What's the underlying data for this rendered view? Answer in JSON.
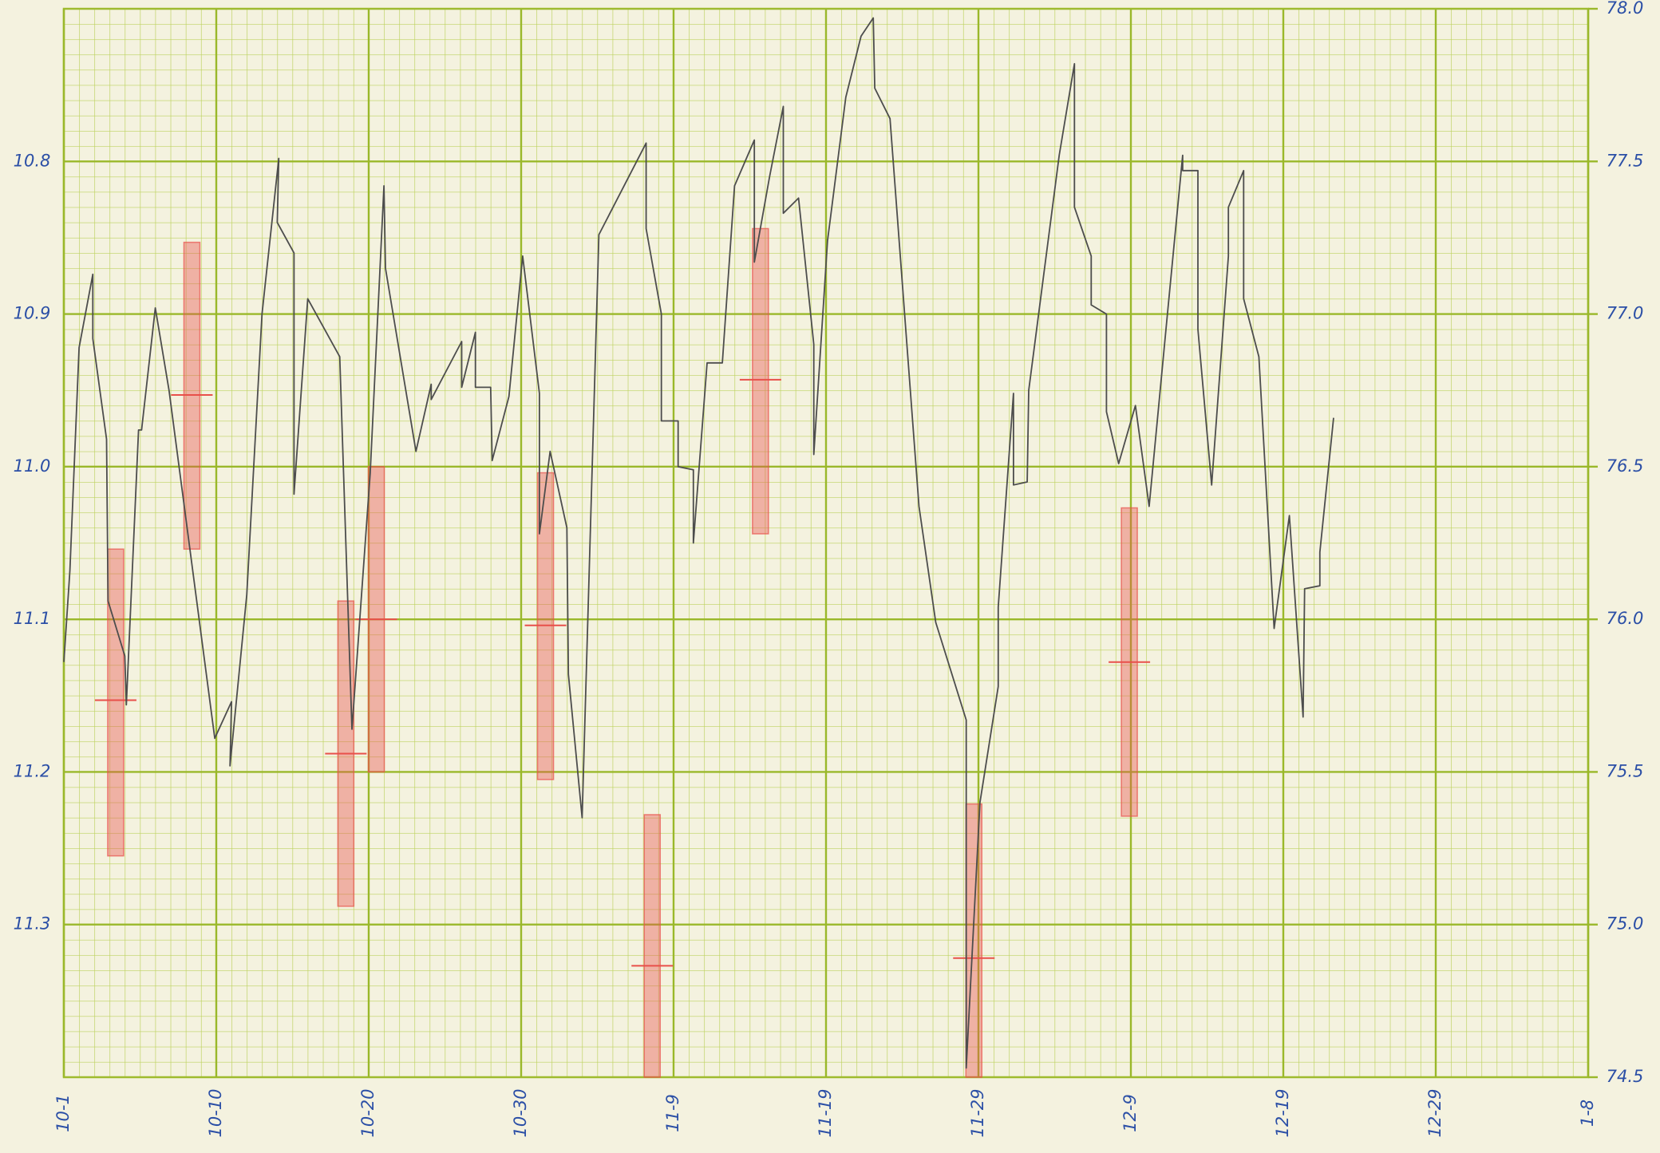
{
  "chart_data": {
    "type": "line",
    "x": [
      0.0,
      0.4,
      1.0,
      1.9,
      1.9,
      2.8,
      2.9,
      4.0,
      4.1,
      4.9,
      5.1,
      6.0,
      6.9,
      9.9,
      11.0,
      10.9,
      12.0,
      13.0,
      14.1,
      14.0,
      15.1,
      15.1,
      16.0,
      18.1,
      18.9,
      20.1,
      21.0,
      21.1,
      23.1,
      24.1,
      24.1,
      26.1,
      26.1,
      27.0,
      27.0,
      28.0,
      28.1,
      29.2,
      30.1,
      31.2,
      31.2,
      31.9,
      33.0,
      33.1,
      34.0,
      35.1,
      38.2,
      38.2,
      39.2,
      39.2,
      40.3,
      40.3,
      41.3,
      41.3,
      42.2,
      43.2,
      44.0,
      45.3,
      45.3,
      46.3,
      47.2,
      47.2,
      48.2,
      49.2,
      49.2,
      50.1,
      51.3,
      52.3,
      53.1,
      53.2,
      54.2,
      56.1,
      57.2,
      59.2,
      59.2,
      60.1,
      61.3,
      61.3,
      62.3,
      62.3,
      63.2,
      63.3,
      65.3,
      66.3,
      66.3,
      67.4,
      67.4,
      68.4,
      68.4,
      69.2,
      70.3,
      71.2,
      72.4,
      73.4,
      73.4,
      74.4,
      74.4,
      75.3,
      76.4,
      76.4,
      77.4,
      77.4,
      78.4,
      79.4,
      80.4,
      81.3,
      81.4,
      82.4,
      82.4,
      83.3
    ],
    "values": [
      75.86,
      76.16,
      76.89,
      77.13,
      76.92,
      76.59,
      76.06,
      75.88,
      75.72,
      76.62,
      76.62,
      77.02,
      76.75,
      75.61,
      75.73,
      75.52,
      76.08,
      77.0,
      77.51,
      77.3,
      77.2,
      76.41,
      77.05,
      76.86,
      75.64,
      76.48,
      77.42,
      77.15,
      76.55,
      76.77,
      76.72,
      76.91,
      76.76,
      76.94,
      76.76,
      76.76,
      76.52,
      76.73,
      77.19,
      76.74,
      76.28,
      76.55,
      76.3,
      75.82,
      75.35,
      77.26,
      77.56,
      77.28,
      77.0,
      76.65,
      76.65,
      76.5,
      76.49,
      76.25,
      76.84,
      76.84,
      77.42,
      77.57,
      77.17,
      77.45,
      77.68,
      77.33,
      77.38,
      76.9,
      76.54,
      77.24,
      77.71,
      77.91,
      77.97,
      77.74,
      77.64,
      76.37,
      75.99,
      75.67,
      74.53,
      75.4,
      75.78,
      76.04,
      76.74,
      76.44,
      76.45,
      76.75,
      77.52,
      77.82,
      77.35,
      77.19,
      77.03,
      77.0,
      76.68,
      76.51,
      76.7,
      76.37,
      77.0,
      77.52,
      77.47,
      77.47,
      76.95,
      76.44,
      77.19,
      77.35,
      77.47,
      77.05,
      76.86,
      75.97,
      76.34,
      75.68,
      76.1,
      76.11,
      76.22,
      76.66
    ],
    "color": "#4d4d4d",
    "axis": "y2",
    "ranges": {
      "color": "#e8504a",
      "x": [
        3.4,
        8.4,
        18.5,
        20.5,
        31.6,
        38.6,
        45.7,
        59.7,
        69.9
      ],
      "low": [
        11.054,
        10.853,
        11.088,
        11.0,
        11.004,
        11.228,
        10.844,
        11.221,
        11.027
      ],
      "high": [
        11.255,
        11.054,
        11.288,
        11.2,
        11.205,
        11.4,
        11.044,
        11.4,
        11.229
      ],
      "mid": [
        11.153,
        10.953,
        11.188,
        11.1,
        11.104,
        11.327,
        10.943,
        11.322,
        11.128
      ]
    },
    "xlim": [
      0,
      100
    ],
    "xticks": [
      {
        "value": 0,
        "label": "10-1"
      },
      {
        "value": 10,
        "label": "10-10"
      },
      {
        "value": 20,
        "label": "10-20"
      },
      {
        "value": 30,
        "label": "10-30"
      },
      {
        "value": 40,
        "label": "11-9"
      },
      {
        "value": 50,
        "label": "11-19"
      },
      {
        "value": 60,
        "label": "11-29"
      },
      {
        "value": 70,
        "label": "12-9"
      },
      {
        "value": 80,
        "label": "12-19"
      },
      {
        "value": 90,
        "label": "12-29"
      },
      {
        "value": 100,
        "label": "1-8"
      }
    ],
    "ylim": [
      11.4,
      10.7
    ],
    "yticks": [
      10.8,
      10.9,
      {
        "value": 11.0,
        "label": "11.0"
      },
      11.1,
      11.2,
      11.3
    ],
    "y2lim": [
      74.5,
      78.0
    ],
    "y2ticks": [
      {
        "value": 78.0,
        "label": "78.0"
      },
      77.5,
      {
        "value": 77.0,
        "label": "77.0"
      },
      76.5,
      {
        "value": 76.0,
        "label": "76.0"
      },
      75.5,
      {
        "value": 75.0,
        "label": "75.0"
      },
      74.5
    ],
    "grid": true
  }
}
